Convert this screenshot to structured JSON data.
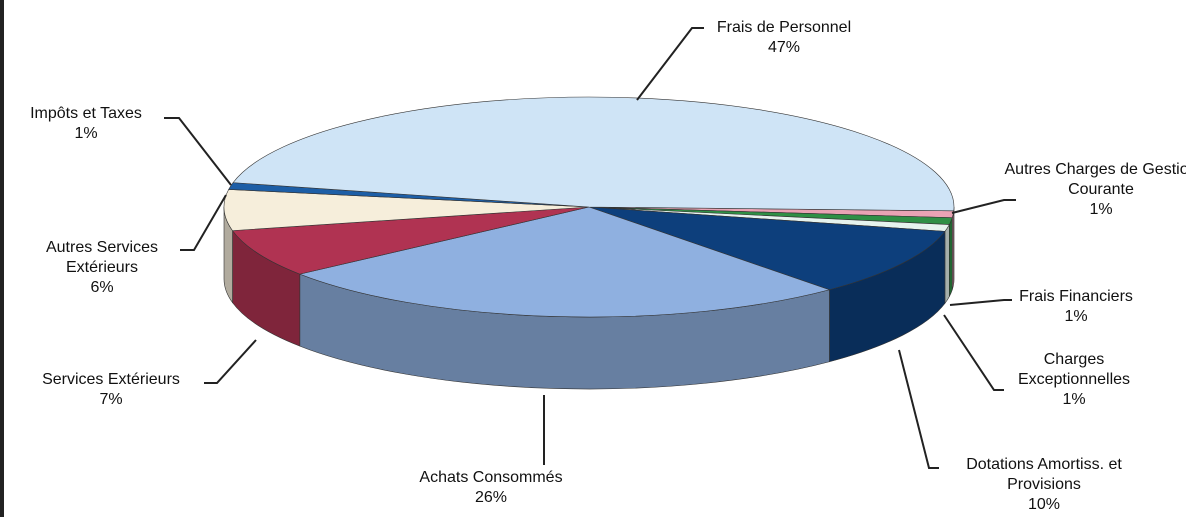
{
  "chart_data": {
    "type": "pie3d",
    "categories": [
      "Autres Charges de Gestion Courante",
      "Frais Financiers",
      "Charges Exceptionnelles",
      "Dotations Amortiss. et Provisions",
      "Achats Consommés",
      "Services Extérieurs",
      "Autres Services Extérieurs",
      "Impôts et Taxes",
      "Frais de Personnel"
    ],
    "values": [
      1,
      1,
      1,
      10,
      26,
      7,
      6,
      1,
      47
    ],
    "value_labels": [
      "1%",
      "1%",
      "1%",
      "10%",
      "26%",
      "7%",
      "6%",
      "1%",
      "47%"
    ],
    "colors": [
      "#e9a3b4",
      "#2f8f45",
      "#e6f3ee",
      "#0d3f7c",
      "#8fb0e0",
      "#b03352",
      "#f6eedb",
      "#1d5ea6",
      "#cfe4f6"
    ]
  }
}
